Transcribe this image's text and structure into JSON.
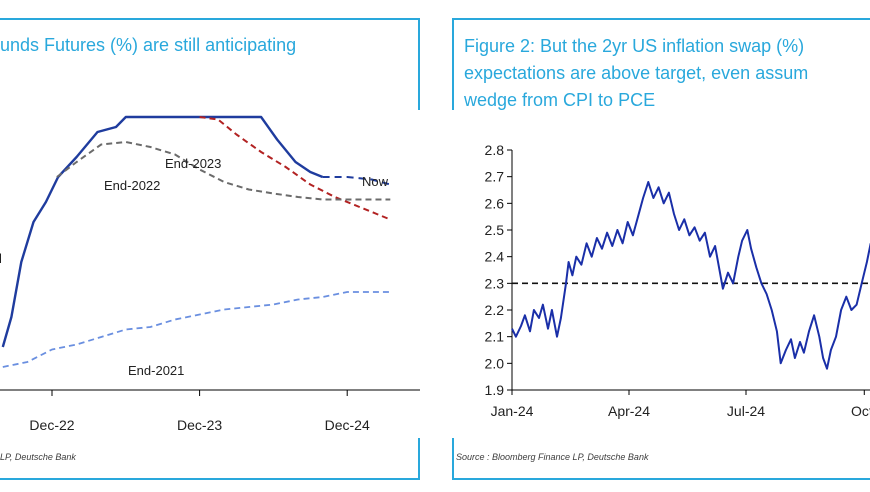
{
  "colors": {
    "accent": "#29a8dc",
    "now": "#1f3c9e",
    "end2023": "#b22222",
    "end2022": "#6b6b6b",
    "end2021": "#6a8fe0",
    "swap": "#1a2fa8",
    "target": "#111111"
  },
  "left": {
    "title_line1": "unds Futures (%) are still anticipating",
    "source": "LP, Deutsche Bank",
    "annotations": {
      "now": "Now",
      "end2023": "End-2023",
      "end2022": "End-2022",
      "end2021": "End-2021",
      "cut": "l"
    },
    "x_ticks": [
      "Dec-22",
      "Dec-23",
      "Dec-24"
    ]
  },
  "right": {
    "title_line1": "Figure 2: But the 2yr US inflation swap (%)",
    "title_line2": "expectations are above target, even assum",
    "title_line3": "wedge from CPI to PCE",
    "source": "Source : Bloomberg Finance LP, Deutsche Bank",
    "y_ticks": [
      "2.8",
      "2.7",
      "2.6",
      "2.5",
      "2.4",
      "2.3",
      "2.2",
      "2.1",
      "2.0",
      "1.9"
    ],
    "x_ticks": [
      "Jan-24",
      "Apr-24",
      "Jul-24",
      "Oct-"
    ]
  },
  "chart_data": [
    {
      "type": "line",
      "title": "unds Futures (%) are still anticipating",
      "x_unit": "months from Dec-22",
      "x_ticks": [
        {
          "label": "Dec-22",
          "x": 0
        },
        {
          "label": "Dec-23",
          "x": 12
        },
        {
          "label": "Dec-24",
          "x": 24
        }
      ],
      "series": [
        {
          "name": "Now",
          "style": "solid",
          "points": [
            [
              -4,
              3.6
            ],
            [
              -3.3,
              4.2
            ],
            [
              -2.5,
              5.3
            ],
            [
              -1.5,
              6.1
            ],
            [
              -0.5,
              6.5
            ],
            [
              0.5,
              7.0
            ],
            [
              2,
              7.4
            ],
            [
              3.7,
              7.9
            ],
            [
              5.2,
              8.0
            ],
            [
              6,
              8.2
            ],
            [
              10,
              8.2
            ],
            [
              17,
              8.2
            ],
            [
              18.3,
              7.75
            ],
            [
              19.8,
              7.3
            ],
            [
              21,
              7.1
            ],
            [
              22,
              7.0
            ]
          ]
        },
        {
          "name": "Now (projection)",
          "style": "dashed",
          "points": [
            [
              22,
              7.0
            ],
            [
              24,
              7.0
            ],
            [
              26,
              6.95
            ],
            [
              27.5,
              6.85
            ]
          ]
        },
        {
          "name": "End-2023",
          "style": "dashed",
          "points": [
            [
              12,
              8.2
            ],
            [
              13.5,
              8.15
            ],
            [
              15,
              7.85
            ],
            [
              17,
              7.5
            ],
            [
              19,
              7.2
            ],
            [
              21,
              6.85
            ],
            [
              23,
              6.6
            ],
            [
              25,
              6.4
            ],
            [
              27.5,
              6.15
            ]
          ]
        },
        {
          "name": "End-2022",
          "style": "dashed",
          "points": [
            [
              0.4,
              7.0
            ],
            [
              2,
              7.3
            ],
            [
              4,
              7.65
            ],
            [
              6,
              7.7
            ],
            [
              8,
              7.6
            ],
            [
              10,
              7.45
            ],
            [
              12,
              7.15
            ],
            [
              14,
              6.9
            ],
            [
              16,
              6.75
            ],
            [
              18,
              6.67
            ],
            [
              20,
              6.6
            ],
            [
              22,
              6.55
            ],
            [
              24,
              6.55
            ],
            [
              27.5,
              6.55
            ]
          ]
        },
        {
          "name": "End-2021",
          "style": "dashed",
          "points": [
            [
              -4,
              3.2
            ],
            [
              -2,
              3.3
            ],
            [
              0,
              3.55
            ],
            [
              2,
              3.65
            ],
            [
              4,
              3.8
            ],
            [
              6,
              3.95
            ],
            [
              8,
              4.0
            ],
            [
              10,
              4.15
            ],
            [
              12,
              4.25
            ],
            [
              14,
              4.35
            ],
            [
              16,
              4.4
            ],
            [
              18,
              4.45
            ],
            [
              20,
              4.55
            ],
            [
              22,
              4.6
            ],
            [
              24,
              4.7
            ],
            [
              27.5,
              4.7
            ]
          ]
        }
      ]
    },
    {
      "type": "line",
      "title": "Figure 2: But the 2yr US inflation swap (%) expectations are above target, even assum wedge from CPI to PCE",
      "ylim": [
        1.9,
        2.8
      ],
      "y_ticks": [
        1.9,
        2.0,
        2.1,
        2.2,
        2.3,
        2.4,
        2.5,
        2.6,
        2.7,
        2.8
      ],
      "x_ticks": [
        "Jan-24",
        "Apr-24",
        "Jul-24",
        "Oct-"
      ],
      "reference_line": 2.3,
      "series": [
        {
          "name": "2yr US inflation swap",
          "points": [
            [
              "2024-01-01",
              2.13
            ],
            [
              "2024-01-04",
              2.1
            ],
            [
              "2024-01-08",
              2.14
            ],
            [
              "2024-01-11",
              2.18
            ],
            [
              "2024-01-15",
              2.12
            ],
            [
              "2024-01-18",
              2.2
            ],
            [
              "2024-01-22",
              2.17
            ],
            [
              "2024-01-25",
              2.22
            ],
            [
              "2024-01-29",
              2.13
            ],
            [
              "2024-02-01",
              2.2
            ],
            [
              "2024-02-05",
              2.1
            ],
            [
              "2024-02-08",
              2.17
            ],
            [
              "2024-02-12",
              2.3
            ],
            [
              "2024-02-14",
              2.38
            ],
            [
              "2024-02-17",
              2.33
            ],
            [
              "2024-02-20",
              2.4
            ],
            [
              "2024-02-24",
              2.37
            ],
            [
              "2024-02-28",
              2.45
            ],
            [
              "2024-03-03",
              2.4
            ],
            [
              "2024-03-07",
              2.47
            ],
            [
              "2024-03-11",
              2.43
            ],
            [
              "2024-03-15",
              2.49
            ],
            [
              "2024-03-19",
              2.44
            ],
            [
              "2024-03-23",
              2.5
            ],
            [
              "2024-03-27",
              2.45
            ],
            [
              "2024-03-31",
              2.53
            ],
            [
              "2024-04-04",
              2.48
            ],
            [
              "2024-04-08",
              2.55
            ],
            [
              "2024-04-12",
              2.62
            ],
            [
              "2024-04-16",
              2.68
            ],
            [
              "2024-04-20",
              2.62
            ],
            [
              "2024-04-24",
              2.66
            ],
            [
              "2024-04-28",
              2.6
            ],
            [
              "2024-05-02",
              2.64
            ],
            [
              "2024-05-06",
              2.56
            ],
            [
              "2024-05-10",
              2.5
            ],
            [
              "2024-05-14",
              2.54
            ],
            [
              "2024-05-18",
              2.48
            ],
            [
              "2024-05-22",
              2.51
            ],
            [
              "2024-05-26",
              2.46
            ],
            [
              "2024-05-30",
              2.49
            ],
            [
              "2024-06-03",
              2.4
            ],
            [
              "2024-06-07",
              2.44
            ],
            [
              "2024-06-10",
              2.36
            ],
            [
              "2024-06-13",
              2.28
            ],
            [
              "2024-06-17",
              2.34
            ],
            [
              "2024-06-21",
              2.3
            ],
            [
              "2024-06-25",
              2.4
            ],
            [
              "2024-06-28",
              2.46
            ],
            [
              "2024-07-02",
              2.5
            ],
            [
              "2024-07-05",
              2.43
            ],
            [
              "2024-07-09",
              2.36
            ],
            [
              "2024-07-13",
              2.3
            ],
            [
              "2024-07-17",
              2.26
            ],
            [
              "2024-07-21",
              2.2
            ],
            [
              "2024-07-25",
              2.12
            ],
            [
              "2024-07-28",
              2.0
            ],
            [
              "2024-08-01",
              2.05
            ],
            [
              "2024-08-05",
              2.09
            ],
            [
              "2024-08-08",
              2.02
            ],
            [
              "2024-08-12",
              2.08
            ],
            [
              "2024-08-15",
              2.04
            ],
            [
              "2024-08-19",
              2.12
            ],
            [
              "2024-08-23",
              2.18
            ],
            [
              "2024-08-27",
              2.1
            ],
            [
              "2024-08-30",
              2.02
            ],
            [
              "2024-09-02",
              1.98
            ],
            [
              "2024-09-05",
              2.05
            ],
            [
              "2024-09-09",
              2.1
            ],
            [
              "2024-09-13",
              2.2
            ],
            [
              "2024-09-17",
              2.25
            ],
            [
              "2024-09-21",
              2.2
            ],
            [
              "2024-09-25",
              2.22
            ],
            [
              "2024-09-29",
              2.3
            ],
            [
              "2024-10-03",
              2.38
            ],
            [
              "2024-10-06",
              2.45
            ]
          ]
        }
      ]
    }
  ]
}
